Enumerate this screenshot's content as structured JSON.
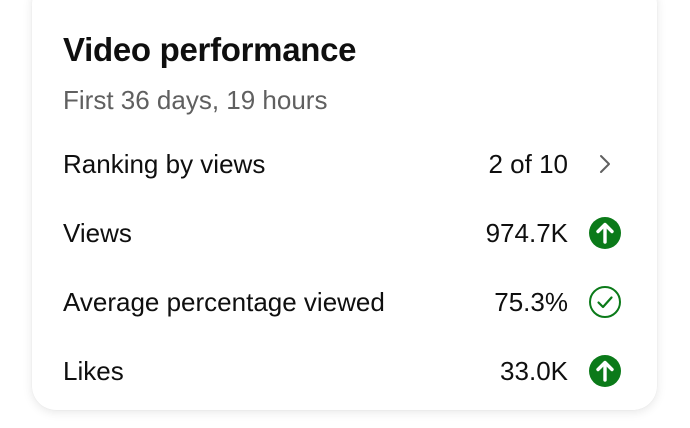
{
  "card": {
    "title": "Video performance",
    "subtitle": "First 36 days, 19 hours"
  },
  "metrics": [
    {
      "label": "Ranking by views",
      "value": "2 of 10",
      "icon": "chevron-right-icon"
    },
    {
      "label": "Views",
      "value": "974.7K",
      "icon": "up-arrow-circle-icon"
    },
    {
      "label": "Average percentage viewed",
      "value": "75.3%",
      "icon": "check-circle-icon"
    },
    {
      "label": "Likes",
      "value": "33.0K",
      "icon": "up-arrow-circle-icon"
    }
  ],
  "colors": {
    "positive": "#0b7a19",
    "text": "#0f0f0f",
    "secondary_text": "#606060",
    "chevron": "#606060"
  }
}
